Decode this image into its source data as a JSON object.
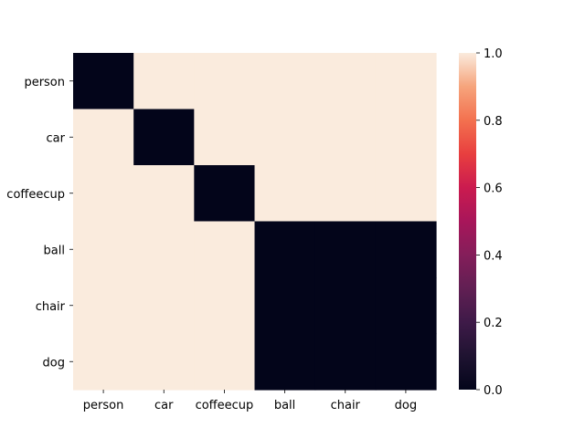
{
  "chart_data": {
    "type": "heatmap",
    "title": "",
    "xlabel": "",
    "ylabel": "",
    "x_categories": [
      "person",
      "car",
      "coffeecup",
      "ball",
      "chair",
      "dog"
    ],
    "y_categories": [
      "person",
      "car",
      "coffeecup",
      "ball",
      "chair",
      "dog"
    ],
    "values": [
      [
        0,
        1,
        1,
        1,
        1,
        1
      ],
      [
        1,
        0,
        1,
        1,
        1,
        1
      ],
      [
        1,
        1,
        0,
        1,
        1,
        1
      ],
      [
        1,
        1,
        1,
        0,
        0,
        0
      ],
      [
        1,
        1,
        1,
        0,
        0,
        0
      ],
      [
        1,
        1,
        1,
        0,
        0,
        0
      ]
    ],
    "colorbar": {
      "range": [
        0.0,
        1.0
      ],
      "ticks": [
        "0.0",
        "0.2",
        "0.4",
        "0.6",
        "0.8",
        "1.0"
      ],
      "colormap": "rocket"
    },
    "colors": {
      "low": "#03051a",
      "high": "#faebdd"
    }
  }
}
